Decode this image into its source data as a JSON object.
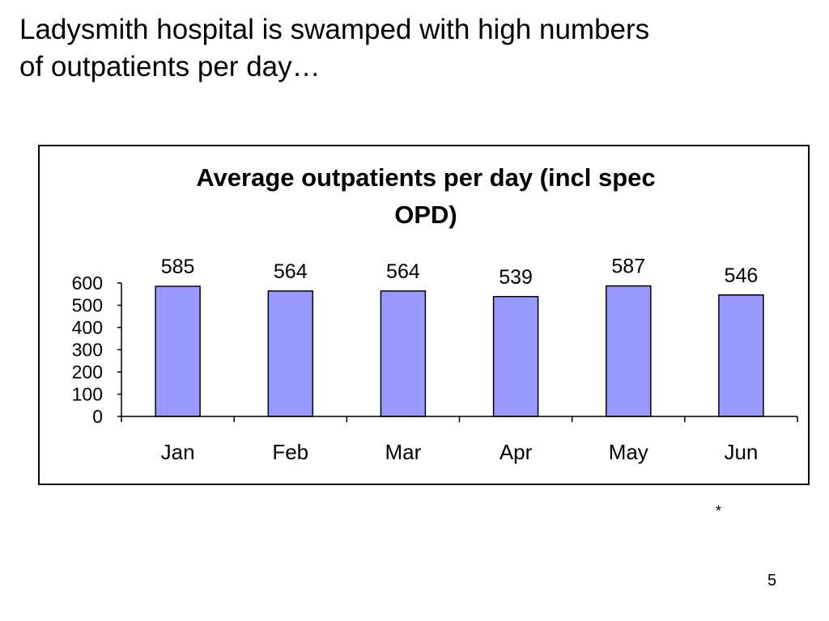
{
  "slide": {
    "title_lines": [
      "Ladysmith hospital is swamped with high numbers",
      "of outpatients per day…"
    ],
    "footnote_mark": "*",
    "page_number": "5"
  },
  "chart_data": {
    "type": "bar",
    "title_lines": [
      "Average outpatients per day (incl spec",
      "OPD)"
    ],
    "categories": [
      "Jan",
      "Feb",
      "Mar",
      "Apr",
      "May",
      "Jun"
    ],
    "values": [
      585,
      564,
      564,
      539,
      587,
      546
    ],
    "ylim": [
      0,
      600
    ],
    "yticks": [
      0,
      100,
      200,
      300,
      400,
      500,
      600
    ],
    "xlabel": "",
    "ylabel": "",
    "grid": false,
    "legend": "none",
    "bar_color": "#9999ff",
    "bar_edge_color": "#000000"
  }
}
